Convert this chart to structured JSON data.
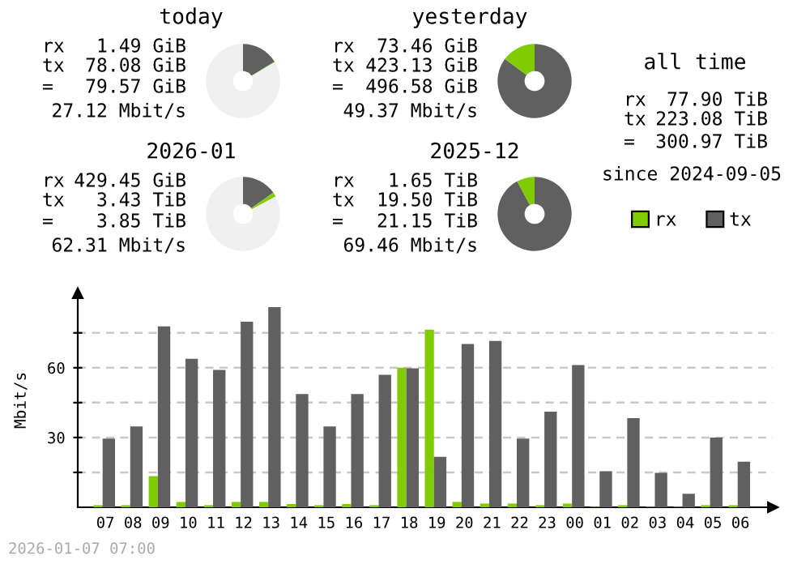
{
  "chart_data": [
    {
      "type": "donut",
      "title": "today",
      "categories": [
        null,
        null,
        null
      ],
      "values": [
        16.2,
        0.3,
        83.5
      ],
      "colors": [
        "#606060",
        "#80cc00",
        "#f0f0f0"
      ],
      "annotations": [
        "rx",
        "1.49 GiB",
        "tx",
        "78.08 GiB",
        "=",
        "79.57 GiB",
        "27.12 Mbit/s"
      ]
    },
    {
      "type": "donut",
      "title": "yesterday",
      "categories": [
        null,
        null
      ],
      "values": [
        85.2,
        14.8
      ],
      "colors": [
        "#606060",
        "#80cc00"
      ],
      "annotations": [
        "rx",
        "73.46 GiB",
        "tx",
        "423.13 GiB",
        "=",
        "496.58 GiB",
        "49.37 Mbit/s"
      ]
    },
    {
      "type": "other",
      "title": "all time",
      "annotations": [
        "rx",
        "77.90 TiB",
        "tx",
        "223.08 TiB",
        "=",
        "300.97 TiB",
        "since 2024-09-05"
      ]
    },
    {
      "type": "donut",
      "title": "2026-01",
      "categories": [
        null,
        null,
        null
      ],
      "values": [
        15.3,
        1.9,
        82.8
      ],
      "colors": [
        "#606060",
        "#80cc00",
        "#f0f0f0"
      ],
      "annotations": [
        "rx",
        "429.45 GiB",
        "tx",
        "3.43 TiB",
        "=",
        "3.85 TiB",
        "62.31 Mbit/s"
      ]
    },
    {
      "type": "donut",
      "title": "2025-12",
      "categories": [
        null,
        null
      ],
      "values": [
        92.2,
        7.8
      ],
      "colors": [
        "#606060",
        "#80cc00"
      ],
      "annotations": [
        "rx",
        "1.65 TiB",
        "tx",
        "19.50 TiB",
        "=",
        "21.15 TiB",
        "69.46 Mbit/s"
      ]
    },
    {
      "type": "bar",
      "ylabel": "Mbit/s",
      "categories": [
        "07",
        "08",
        "09",
        "10",
        "11",
        "12",
        "13",
        "14",
        "15",
        "16",
        "17",
        "18",
        "19",
        "20",
        "21",
        "22",
        "23",
        "00",
        "01",
        "02",
        "03",
        "04",
        "05",
        "06"
      ],
      "series": [
        {
          "name": "rx",
          "color": "#80cc00",
          "values": [
            0.9,
            0.9,
            13.4,
            2.3,
            0.9,
            2.3,
            2.3,
            1.4,
            0.9,
            1.4,
            0.9,
            60.0,
            76.4,
            2.3,
            1.6,
            1.6,
            0.9,
            1.6,
            0.2,
            0.9,
            0.2,
            0.2,
            0.9,
            0.9
          ]
        },
        {
          "name": "tx",
          "color": "#606060",
          "values": [
            29.5,
            34.8,
            77.8,
            63.9,
            59.1,
            79.8,
            86.1,
            48.7,
            34.8,
            48.7,
            57.0,
            59.8,
            21.7,
            70.2,
            71.5,
            29.5,
            41.1,
            61.2,
            15.5,
            38.3,
            14.8,
            5.8,
            30.0,
            19.6
          ]
        }
      ],
      "ylim": [
        0,
        92
      ],
      "yticks": [
        {
          "value": 15,
          "label": null
        },
        30,
        {
          "value": 45,
          "label": null
        },
        60,
        {
          "value": 75,
          "label": null
        }
      ],
      "grid": "y",
      "legend": "top right",
      "annotations": [
        "2026-01-07 07:00"
      ]
    }
  ]
}
